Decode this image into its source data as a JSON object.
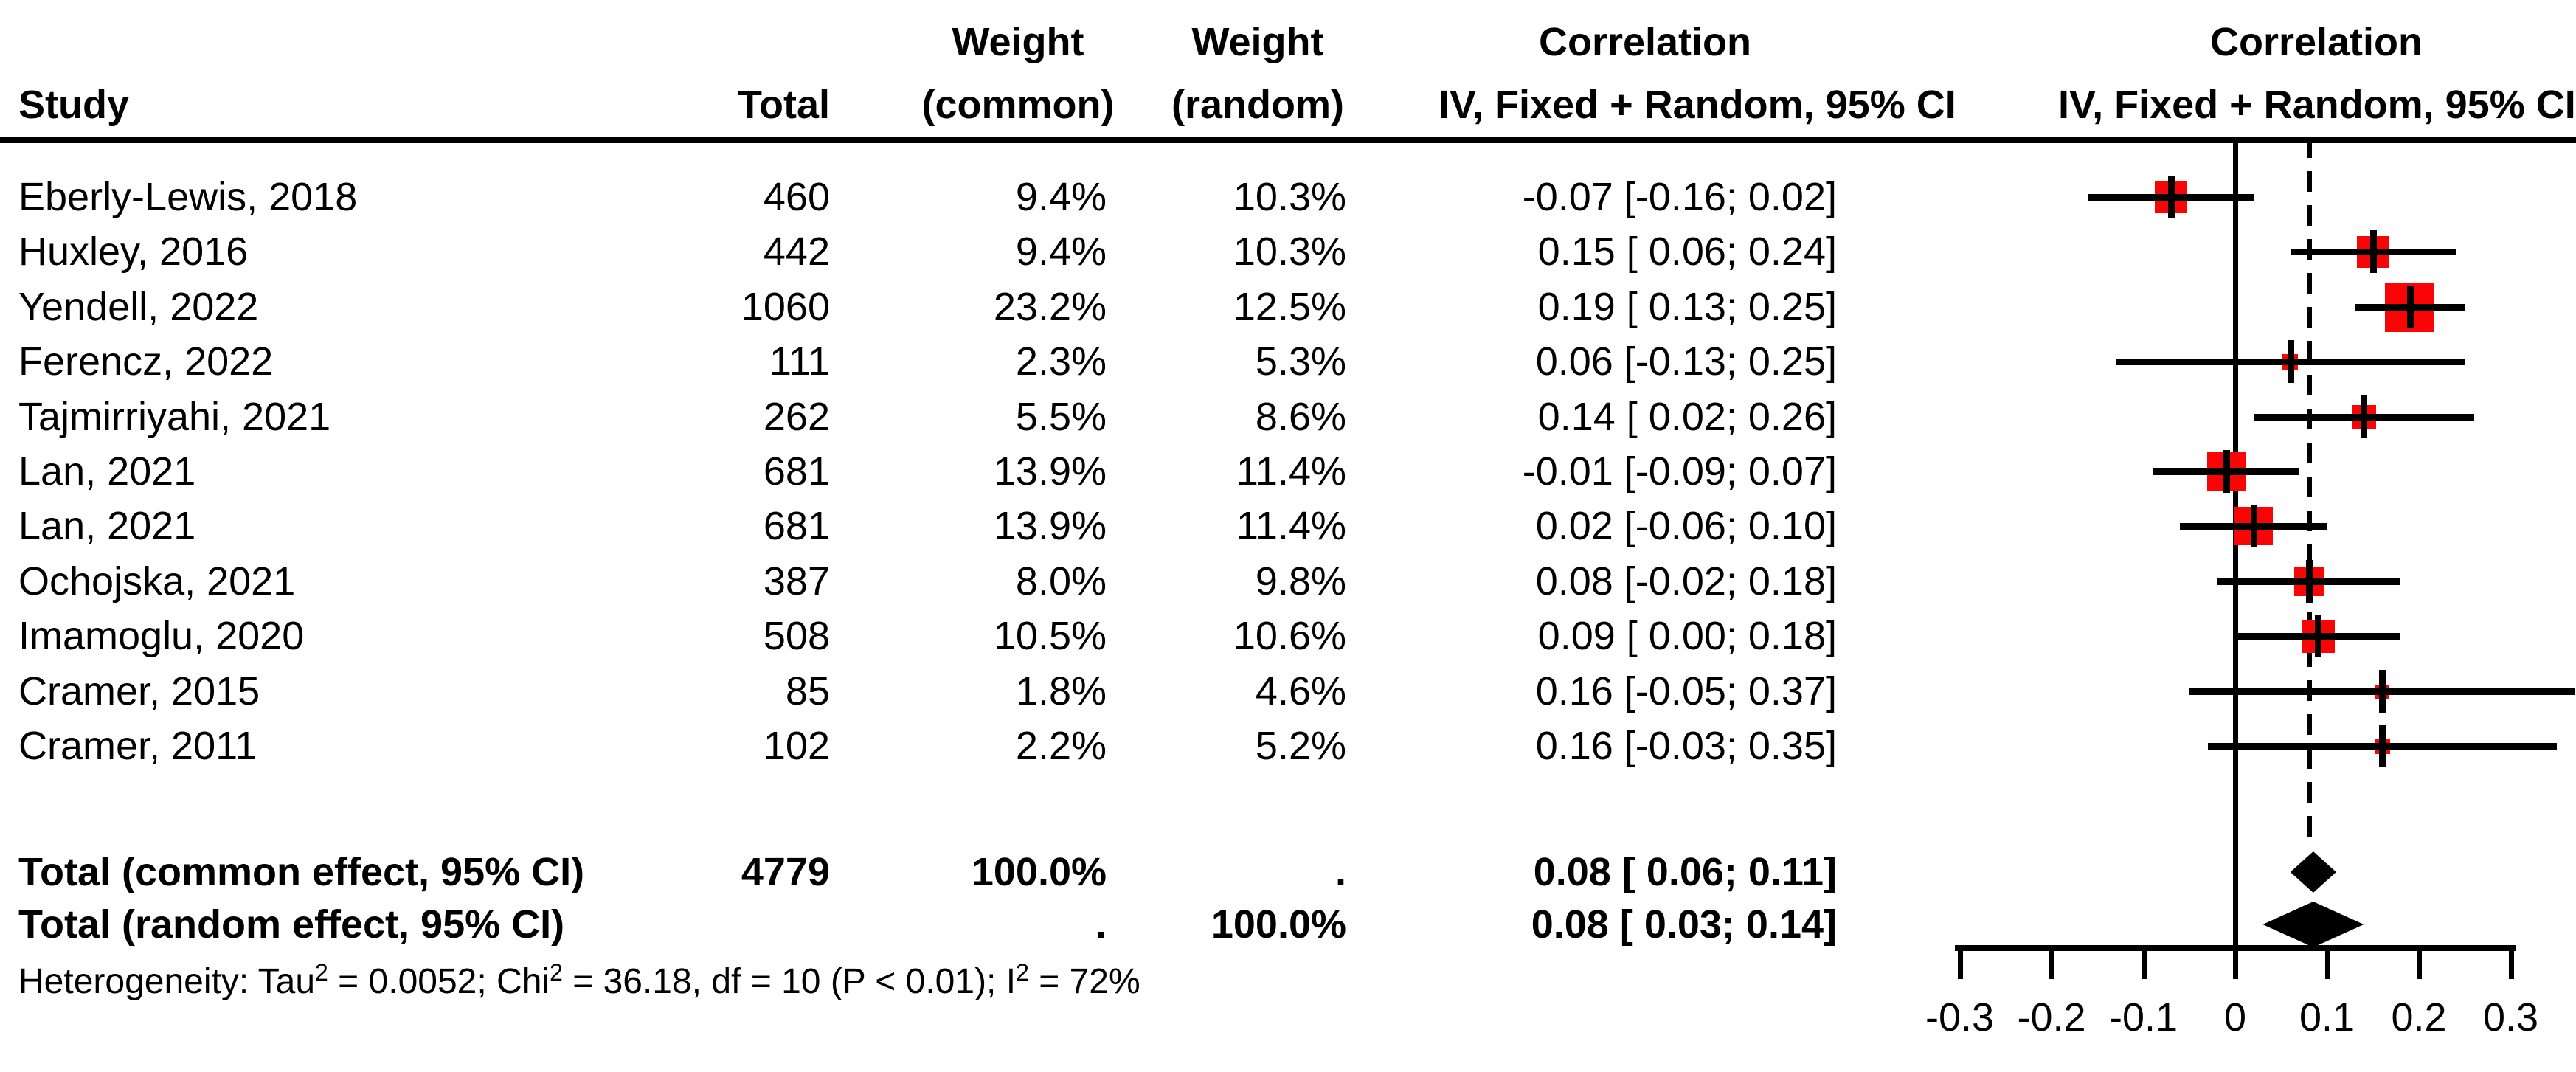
{
  "header": {
    "study": "Study",
    "total": "Total",
    "weight_common_top": "Weight",
    "weight_common_bottom": "(common)",
    "weight_random_top": "Weight",
    "weight_random_bottom": "(random)",
    "ci_text_top": "Correlation",
    "ci_text_bottom": "IV, Fixed + Random, 95% CI",
    "ci_plot_top": "Correlation",
    "ci_plot_bottom": "IV, Fixed + Random, 95% CI"
  },
  "heterogeneity": {
    "p1": "Heterogeneity: Tau",
    "s1": "2",
    "p2": " = 0.0052; Chi",
    "s2": "2",
    "p3": " = 36.18, df = 10 (P < 0.01); I",
    "s3": "2",
    "p4": " = 72%"
  },
  "colors": {
    "square": "#fa0505",
    "line": "#000000",
    "diamond": "#000000",
    "background": "#ffffff"
  },
  "chart_data": {
    "type": "forest",
    "title": "",
    "xlabel": "",
    "effect_measure": "Correlation (IV, Fixed + Random, 95% CI)",
    "null_line_at": 0,
    "dashed_line_at": 0.08,
    "axis": {
      "xlim": [
        -0.3,
        0.3
      ],
      "ticks": [
        {
          "v": -0.3,
          "label": "-0.3"
        },
        {
          "v": -0.2,
          "label": "-0.2"
        },
        {
          "v": -0.1,
          "label": "-0.1"
        },
        {
          "v": 0,
          "label": "0"
        },
        {
          "v": 0.1,
          "label": "0.1"
        },
        {
          "v": 0.2,
          "label": "0.2"
        },
        {
          "v": 0.3,
          "label": "0.3"
        }
      ]
    },
    "studies": [
      {
        "study": "Eberly-Lewis, 2018",
        "total": "460",
        "weight_common": "9.4%",
        "weight_random": "10.3%",
        "wc": 9.4,
        "wr": 10.3,
        "ci_label": "-0.07 [-0.16; 0.02]",
        "est": -0.07,
        "lo": -0.16,
        "hi": 0.02
      },
      {
        "study": "Huxley, 2016",
        "total": "442",
        "weight_common": "9.4%",
        "weight_random": "10.3%",
        "wc": 9.4,
        "wr": 10.3,
        "ci_label": "0.15 [ 0.06; 0.24]",
        "est": 0.15,
        "lo": 0.06,
        "hi": 0.24
      },
      {
        "study": "Yendell, 2022",
        "total": "1060",
        "weight_common": "23.2%",
        "weight_random": "12.5%",
        "wc": 23.2,
        "wr": 12.5,
        "ci_label": "0.19 [ 0.13; 0.25]",
        "est": 0.19,
        "lo": 0.13,
        "hi": 0.25
      },
      {
        "study": "Ferencz, 2022",
        "total": "111",
        "weight_common": "2.3%",
        "weight_random": "5.3%",
        "wc": 2.3,
        "wr": 5.3,
        "ci_label": "0.06 [-0.13; 0.25]",
        "est": 0.06,
        "lo": -0.13,
        "hi": 0.25
      },
      {
        "study": "Tajmirriyahi, 2021",
        "total": "262",
        "weight_common": "5.5%",
        "weight_random": "8.6%",
        "wc": 5.5,
        "wr": 8.6,
        "ci_label": "0.14 [ 0.02; 0.26]",
        "est": 0.14,
        "lo": 0.02,
        "hi": 0.26
      },
      {
        "study": "Lan, 2021",
        "total": "681",
        "weight_common": "13.9%",
        "weight_random": "11.4%",
        "wc": 13.9,
        "wr": 11.4,
        "ci_label": "-0.01 [-0.09; 0.07]",
        "est": -0.01,
        "lo": -0.09,
        "hi": 0.07
      },
      {
        "study": "Lan, 2021",
        "total": "681",
        "weight_common": "13.9%",
        "weight_random": "11.4%",
        "wc": 13.9,
        "wr": 11.4,
        "ci_label": "0.02 [-0.06; 0.10]",
        "est": 0.02,
        "lo": -0.06,
        "hi": 0.1
      },
      {
        "study": "Ochojska, 2021",
        "total": "387",
        "weight_common": "8.0%",
        "weight_random": "9.8%",
        "wc": 8.0,
        "wr": 9.8,
        "ci_label": "0.08 [-0.02; 0.18]",
        "est": 0.08,
        "lo": -0.02,
        "hi": 0.18
      },
      {
        "study": "Imamoglu, 2020",
        "total": "508",
        "weight_common": "10.5%",
        "weight_random": "10.6%",
        "wc": 10.5,
        "wr": 10.6,
        "ci_label": "0.09 [ 0.00; 0.18]",
        "est": 0.09,
        "lo": 0.0,
        "hi": 0.18
      },
      {
        "study": "Cramer, 2015",
        "total": "85",
        "weight_common": "1.8%",
        "weight_random": "4.6%",
        "wc": 1.8,
        "wr": 4.6,
        "ci_label": "0.16 [-0.05; 0.37]",
        "est": 0.16,
        "lo": -0.05,
        "hi": 0.37
      },
      {
        "study": "Cramer, 2011",
        "total": "102",
        "weight_common": "2.2%",
        "weight_random": "5.2%",
        "wc": 2.2,
        "wr": 5.2,
        "ci_label": "0.16 [-0.03; 0.35]",
        "est": 0.16,
        "lo": -0.03,
        "hi": 0.35
      }
    ],
    "totals": [
      {
        "label": "Total (common effect, 95% CI)",
        "total": "4779",
        "weight_common": "100.0%",
        "weight_random": ".",
        "ci_label": "0.08 [ 0.06; 0.11]",
        "est": 0.08,
        "lo": 0.06,
        "hi": 0.11
      },
      {
        "label": "Total (random effect, 95% CI)",
        "total": "",
        "weight_common": ".",
        "weight_random": "100.0%",
        "ci_label": "0.08 [ 0.03; 0.14]",
        "est": 0.08,
        "lo": 0.03,
        "hi": 0.14
      }
    ]
  }
}
